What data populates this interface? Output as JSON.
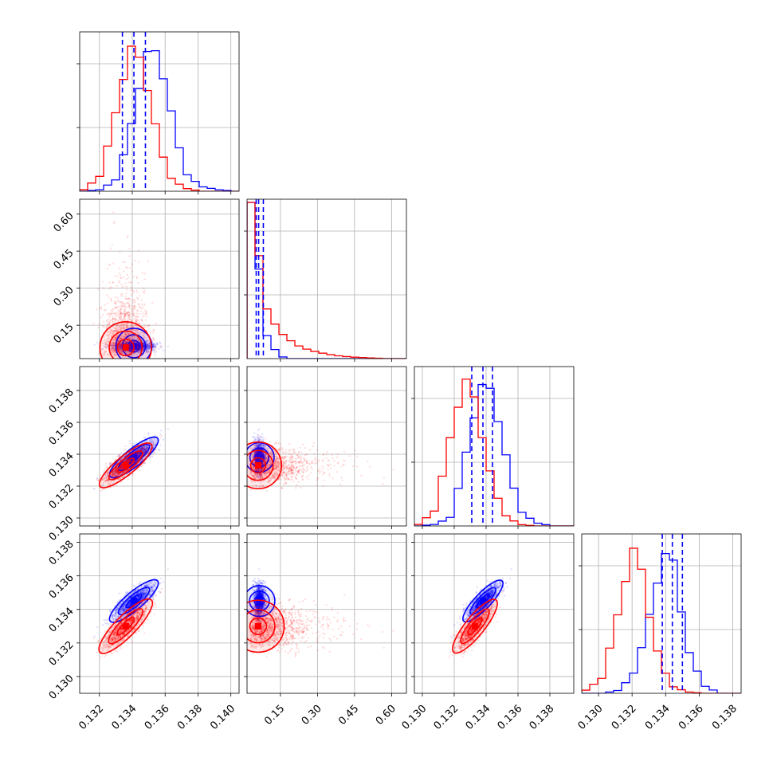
{
  "chart_data": {
    "type": "corner",
    "grid": true,
    "variables": [
      {
        "range": [
          0.1308,
          0.1405
        ],
        "ticks": [
          "0.132",
          "0.134",
          "0.136",
          "0.138",
          "0.140"
        ],
        "tick_values": [
          0.132,
          0.134,
          0.136,
          0.138,
          0.14
        ]
      },
      {
        "range": [
          0.015,
          0.66
        ],
        "ticks": [
          "0.15",
          "0.30",
          "0.45",
          "0.60"
        ],
        "tick_values": [
          0.15,
          0.3,
          0.45,
          0.6
        ]
      },
      {
        "range": [
          0.1295,
          0.1395
        ],
        "ticks": [
          "0.130",
          "0.132",
          "0.134",
          "0.136",
          "0.138"
        ],
        "tick_values": [
          0.13,
          0.132,
          0.134,
          0.136,
          0.138
        ]
      },
      {
        "range": [
          0.129,
          0.1385
        ],
        "ticks": [
          "0.130",
          "0.132",
          "0.134",
          "0.136",
          "0.138"
        ],
        "tick_values": [
          0.13,
          0.132,
          0.134,
          0.136,
          0.138
        ]
      }
    ],
    "series": [
      {
        "color": "#0000ff",
        "means": [
          0.1341,
          0.065,
          0.1338,
          0.1345
        ],
        "sds": [
          0.0006,
          0.01,
          0.0005,
          0.0005
        ],
        "corr": [
          [
            1,
            0,
            0.85,
            0.8
          ],
          [
            0,
            1,
            0,
            0
          ],
          [
            0.85,
            0,
            1,
            0.8
          ],
          [
            0.8,
            0,
            0.8,
            1
          ]
        ],
        "quantiles": [
          [
            0.1334,
            0.1341,
            0.1348
          ],
          [
            0.052,
            0.062,
            0.081
          ],
          [
            0.1331,
            0.1338,
            0.1344
          ],
          [
            0.1338,
            0.1344,
            0.135
          ]
        ]
      },
      {
        "color": "#ff0000",
        "means": [
          0.1336,
          0.06,
          0.1333,
          0.133
        ],
        "sds": [
          0.00065,
          0.04,
          0.00055,
          0.00065
        ],
        "corr": [
          [
            1,
            0,
            0.85,
            0.8
          ],
          [
            0,
            1,
            0,
            0
          ],
          [
            0.85,
            0,
            1,
            0.8
          ],
          [
            0.8,
            0,
            0.8,
            1
          ]
        ],
        "tail": {
          "variable": 1,
          "scale": 0.08
        }
      }
    ],
    "histograms": {
      "bins": 20,
      "series": [
        {
          "color": "#0000ff",
          "densities": [
            [
              0.0,
              0.01,
              0.08,
              0.5,
              1.0,
              0.62,
              0.12,
              0.03,
              0.01,
              0.0
            ],
            [
              1.0,
              0.1,
              0.0,
              0.0,
              0.0,
              0.0,
              0.0,
              0.0,
              0.0,
              0.0
            ],
            [
              0.0,
              0.01,
              0.06,
              0.55,
              1.0,
              0.55,
              0.1,
              0.02,
              0.0,
              0.0
            ],
            [
              0.0,
              0.0,
              0.02,
              0.15,
              0.6,
              1.0,
              0.3,
              0.05,
              0.0,
              0.0
            ]
          ]
        },
        {
          "color": "#ff0000",
          "densities": [
            [
              0.01,
              0.1,
              0.55,
              1.0,
              0.55,
              0.1,
              0.02,
              0.0,
              0.0,
              0.0
            ],
            [
              1.0,
              0.28,
              0.14,
              0.07,
              0.04,
              0.02,
              0.01,
              0.005,
              0.0,
              0.0
            ],
            [
              0.01,
              0.1,
              0.62,
              1.0,
              0.45,
              0.08,
              0.01,
              0.0,
              0.0,
              0.0
            ],
            [
              0.02,
              0.1,
              0.55,
              1.0,
              0.35,
              0.05,
              0.01,
              0.0,
              0.0,
              0.0
            ]
          ]
        }
      ]
    }
  }
}
